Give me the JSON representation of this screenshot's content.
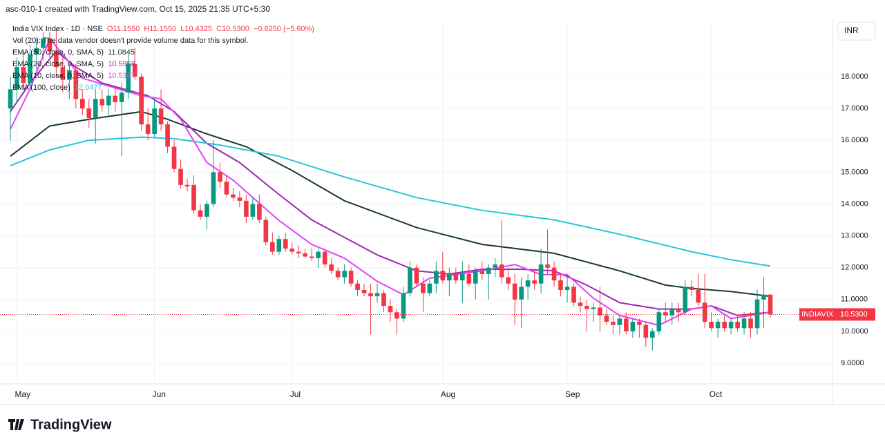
{
  "chart_data": {
    "type": "candlestick",
    "attribution": "asc-010-1 created with TradingView.com, Oct 15, 2025 21:35 UTC+5:30",
    "title": "India VIX Index · 1D · NSE",
    "header_ohlc": [
      "O11.1550",
      "H11.1550",
      "L10.4325",
      "C10.5300",
      "−0.6250 (−5.60%)"
    ],
    "volume_note": "Vol (20): The data vendor doesn't provide volume data for this symbol.",
    "currency": "INR",
    "symbol_tag": "INDIAVIX",
    "last_price": {
      "value": 10.53,
      "label": "10.5300"
    },
    "logo": "TradingView",
    "up_color": "#089981",
    "down_color": "#f23645",
    "grid": true,
    "ylim": [
      8.35,
      19.8
    ],
    "yticks": [
      {
        "value": 9,
        "label": "9.0000"
      },
      {
        "value": 10,
        "label": "10.0000"
      },
      {
        "value": 11,
        "label": "11.0000"
      },
      {
        "value": 12,
        "label": "12.0000"
      },
      {
        "value": 13,
        "label": "13.0000"
      },
      {
        "value": 14,
        "label": "14.0000"
      },
      {
        "value": 15,
        "label": "15.0000"
      },
      {
        "value": 16,
        "label": "16.0000"
      },
      {
        "value": 17,
        "label": "17.0000"
      },
      {
        "value": 18,
        "label": "18.0000"
      }
    ],
    "categories": [
      null,
      "May",
      null,
      null,
      null,
      null,
      null,
      null,
      null,
      null,
      null,
      null,
      null,
      null,
      null,
      null,
      null,
      null,
      null,
      null,
      null,
      null,
      "Jun",
      null,
      null,
      null,
      null,
      null,
      null,
      null,
      null,
      null,
      null,
      null,
      null,
      null,
      null,
      null,
      null,
      null,
      null,
      null,
      null,
      "Jul",
      null,
      null,
      null,
      null,
      null,
      null,
      null,
      null,
      null,
      null,
      null,
      null,
      null,
      null,
      null,
      null,
      null,
      null,
      null,
      null,
      null,
      null,
      "Aug",
      null,
      null,
      null,
      null,
      null,
      null,
      null,
      null,
      null,
      null,
      null,
      null,
      null,
      null,
      null,
      null,
      null,
      null,
      "Sep",
      null,
      null,
      null,
      null,
      null,
      null,
      null,
      null,
      null,
      null,
      null,
      null,
      null,
      null,
      null,
      null,
      null,
      null,
      null,
      null,
      null,
      "Oct",
      null,
      null,
      null,
      null,
      null,
      null,
      null,
      null,
      null
    ],
    "open": [
      17.0,
      17.6,
      18.3,
      17.8,
      18.7,
      18.9,
      19.2,
      18.8,
      18.3,
      17.9,
      18.2,
      17.3,
      17.0,
      16.7,
      17.3,
      17.1,
      17.4,
      17.2,
      17.5,
      18.4,
      18.0,
      16.5,
      16.2,
      17.0,
      16.5,
      15.8,
      15.1,
      14.6,
      14.6,
      13.8,
      13.6,
      14.0,
      15.0,
      14.7,
      14.3,
      14.2,
      14.1,
      13.6,
      14.0,
      13.5,
      12.8,
      12.5,
      12.9,
      12.6,
      12.5,
      12.45,
      12.35,
      12.3,
      12.5,
      12.1,
      11.9,
      11.7,
      11.9,
      11.5,
      11.3,
      11.2,
      11.1,
      11.2,
      10.8,
      10.6,
      10.4,
      11.2,
      12.0,
      11.5,
      11.2,
      11.5,
      11.9,
      11.6,
      11.8,
      11.6,
      11.8,
      11.5,
      11.9,
      11.8,
      12.0,
      12.1,
      11.7,
      11.5,
      11.0,
      11.4,
      11.6,
      11.5,
      12.1,
      12.0,
      11.6,
      11.3,
      11.4,
      10.9,
      10.8,
      10.7,
      10.75,
      10.5,
      10.3,
      10.2,
      10.4,
      10.0,
      10.3,
      10.2,
      9.8,
      10.0,
      10.6,
      10.5,
      10.7,
      10.6,
      11.4,
      11.3,
      10.9,
      10.3,
      10.1,
      10.3,
      10.1,
      10.3,
      10.1,
      10.4,
      10.1,
      11.0,
      11.155
    ],
    "high": [
      18.0,
      18.6,
      18.8,
      19.0,
      19.2,
      19.4,
      19.4,
      19.5,
      18.6,
      18.4,
      18.4,
      17.6,
      17.3,
      17.6,
      17.6,
      17.6,
      17.7,
      17.8,
      18.7,
      18.9,
      18.1,
      17.0,
      17.3,
      17.6,
      16.6,
      16.0,
      15.4,
      14.8,
      14.9,
      14.0,
      14.1,
      16.0,
      15.3,
      14.9,
      14.5,
      14.4,
      14.3,
      14.2,
      14.3,
      13.6,
      13.1,
      13.0,
      13.1,
      12.8,
      12.7,
      12.6,
      12.6,
      12.6,
      12.6,
      12.3,
      12.0,
      12.1,
      12.0,
      11.6,
      11.5,
      11.5,
      11.5,
      11.3,
      11.0,
      10.7,
      11.4,
      12.2,
      12.1,
      11.7,
      11.6,
      12.2,
      12.5,
      12.0,
      12.0,
      12.2,
      12.1,
      12.0,
      12.2,
      12.1,
      12.3,
      13.5,
      12.0,
      11.8,
      11.7,
      11.8,
      11.9,
      12.6,
      13.2,
      12.2,
      11.8,
      11.7,
      11.5,
      11.1,
      11.0,
      10.9,
      11.4,
      10.7,
      10.5,
      10.5,
      10.6,
      10.4,
      10.4,
      10.3,
      10.1,
      10.7,
      10.9,
      10.9,
      10.9,
      11.6,
      11.6,
      11.8,
      11.8,
      10.6,
      10.4,
      10.5,
      10.4,
      10.5,
      10.6,
      10.6,
      11.3,
      11.7,
      11.155
    ],
    "low": [
      16.0,
      17.2,
      17.6,
      17.6,
      18.2,
      18.5,
      18.6,
      18.0,
      17.5,
      17.3,
      17.0,
      16.8,
      16.4,
      15.9,
      16.9,
      16.8,
      16.9,
      15.5,
      17.3,
      17.9,
      16.3,
      16.0,
      16.1,
      16.3,
      15.6,
      15.0,
      14.5,
      14.4,
      13.7,
      13.5,
      13.2,
      13.9,
      14.5,
      14.2,
      14.1,
      13.9,
      13.4,
      13.5,
      13.4,
      12.7,
      12.4,
      12.4,
      12.5,
      12.4,
      12.3,
      12.3,
      12.2,
      12.0,
      12.0,
      11.8,
      11.6,
      11.5,
      11.4,
      11.1,
      11.1,
      9.9,
      10.9,
      10.6,
      10.3,
      9.9,
      10.3,
      11.1,
      11.4,
      10.6,
      11.1,
      11.2,
      11.5,
      11.1,
      11.5,
      10.9,
      11.4,
      11.0,
      11.6,
      11.0,
      11.7,
      11.5,
      11.3,
      10.2,
      10.1,
      11.0,
      11.3,
      11.2,
      11.8,
      11.4,
      11.1,
      10.9,
      10.8,
      10.6,
      10.0,
      10.3,
      10.0,
      10.2,
      9.9,
      9.9,
      9.9,
      9.8,
      9.8,
      9.5,
      9.4,
      9.9,
      10.3,
      10.2,
      10.3,
      10.5,
      11.1,
      10.8,
      10.1,
      10.0,
      9.8,
      10.0,
      9.9,
      10.0,
      9.9,
      9.8,
      9.9,
      10.1,
      10.4325
    ],
    "close": [
      17.6,
      18.3,
      17.8,
      18.7,
      18.9,
      19.2,
      18.8,
      18.3,
      17.9,
      18.2,
      17.3,
      17.0,
      16.7,
      17.3,
      17.1,
      17.4,
      17.2,
      17.5,
      18.4,
      18.0,
      16.5,
      16.2,
      17.0,
      16.5,
      15.8,
      15.1,
      14.6,
      14.55,
      13.8,
      13.6,
      14.0,
      15.0,
      14.7,
      14.3,
      14.2,
      14.1,
      13.6,
      14.0,
      13.5,
      12.8,
      12.5,
      12.9,
      12.6,
      12.5,
      12.45,
      12.35,
      12.3,
      12.5,
      12.1,
      11.9,
      11.7,
      11.9,
      11.5,
      11.3,
      11.2,
      11.1,
      11.2,
      10.8,
      10.6,
      10.4,
      11.2,
      12.0,
      11.5,
      11.2,
      11.5,
      11.9,
      11.6,
      11.8,
      11.6,
      11.8,
      11.5,
      11.9,
      11.8,
      12.0,
      12.1,
      11.7,
      11.5,
      11.0,
      11.4,
      11.6,
      11.5,
      12.1,
      12.0,
      11.6,
      11.3,
      11.4,
      10.9,
      10.8,
      10.7,
      10.75,
      10.5,
      10.3,
      10.2,
      10.4,
      10.0,
      10.3,
      10.2,
      9.8,
      10.0,
      10.6,
      10.5,
      10.7,
      10.6,
      11.4,
      11.3,
      10.9,
      10.3,
      10.1,
      10.3,
      10.1,
      10.3,
      10.1,
      10.4,
      10.1,
      11.0,
      11.155,
      10.53
    ],
    "series": [
      {
        "name": "EMA (50, close, 0, SMA, 5)",
        "legend_value": "11.0845",
        "color": "#1b3a2f",
        "x": [
          0,
          6,
          12,
          20,
          24,
          30,
          36,
          43,
          51,
          62,
          72,
          83,
          93,
          100,
          104,
          110,
          116
        ],
        "values": [
          15.5,
          16.45,
          16.66,
          16.9,
          16.66,
          16.2,
          15.8,
          15.05,
          14.1,
          13.26,
          12.73,
          12.45,
          11.9,
          11.45,
          11.35,
          11.25,
          11.1
        ]
      },
      {
        "name": "EMA (20, close, 0, SMA, 5)",
        "legend_value": "10.5958",
        "color": "#9c27b0",
        "x": [
          0,
          3,
          7,
          10,
          14,
          21,
          25,
          30,
          35,
          41,
          46,
          51,
          56,
          62,
          67,
          72,
          78,
          83,
          88,
          93,
          99,
          104,
          107,
          111,
          116
        ],
        "values": [
          16.9,
          17.8,
          18.8,
          18.3,
          17.8,
          17.4,
          16.9,
          15.9,
          15.3,
          14.3,
          13.5,
          12.95,
          12.4,
          11.9,
          11.8,
          11.95,
          11.95,
          11.9,
          11.45,
          10.9,
          10.7,
          10.7,
          10.8,
          10.5,
          10.6
        ]
      },
      {
        "name": "EMA (10, close, 0, SMA, 5)",
        "legend_value": "10.5367",
        "color": "#e040fb",
        "x": [
          0,
          3,
          6,
          11,
          20,
          23,
          26,
          30,
          34,
          41,
          46,
          51,
          56,
          60,
          64,
          72,
          77,
          81,
          85,
          89,
          93,
          99,
          104,
          107,
          110,
          116
        ],
        "values": [
          16.35,
          17.6,
          19.2,
          17.95,
          17.4,
          17.3,
          16.66,
          15.3,
          14.75,
          13.48,
          12.73,
          12.3,
          11.57,
          11.15,
          11.67,
          11.9,
          12.1,
          11.78,
          11.78,
          11.04,
          10.5,
          10.19,
          10.7,
          10.8,
          10.4,
          10.6
        ]
      },
      {
        "name": "EMA (100, close)",
        "legend_value": "12.0477",
        "color": "#26c6da",
        "x": [
          0,
          6,
          12,
          20,
          25,
          32,
          41,
          51,
          62,
          72,
          83,
          93,
          104,
          110,
          116
        ],
        "values": [
          15.2,
          15.7,
          16.0,
          16.1,
          16.05,
          15.85,
          15.5,
          14.85,
          14.2,
          13.8,
          13.5,
          13.05,
          12.5,
          12.25,
          12.05
        ]
      }
    ]
  }
}
